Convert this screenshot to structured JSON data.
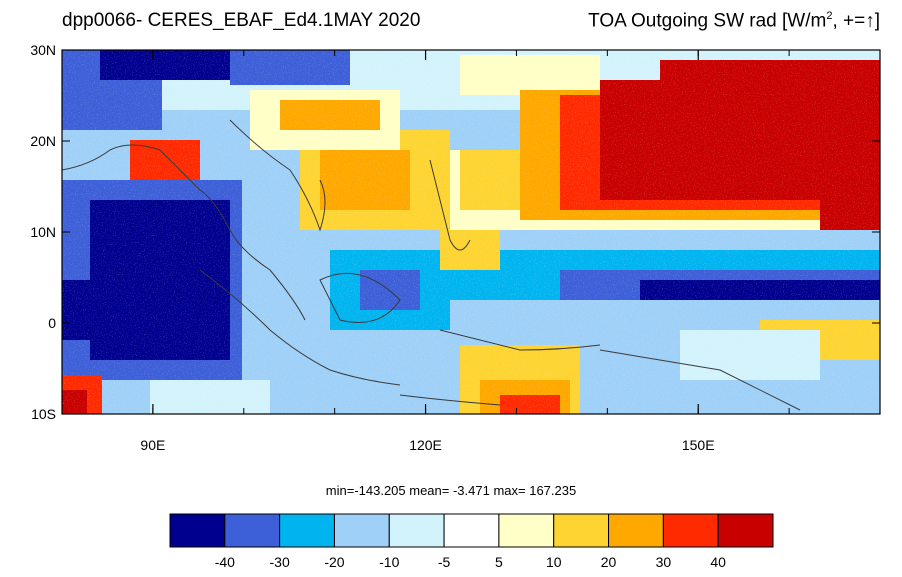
{
  "title_left": "dpp0066- CERES_EBAF_Ed4.1MAY 2020",
  "title_right": {
    "main": "TOA Outgoing SW rad [W/m",
    "sup": "2",
    "tail": ", +=",
    "arrow": "↑",
    "close": "]"
  },
  "map": {
    "lat_ticks": [
      {
        "value": 30,
        "label": "30N"
      },
      {
        "value": 20,
        "label": "20N"
      },
      {
        "value": 10,
        "label": "10N"
      },
      {
        "value": 0,
        "label": "0"
      },
      {
        "value": -10,
        "label": "10S"
      }
    ],
    "lon_ticks": [
      {
        "value": 90,
        "label": "90E"
      },
      {
        "value": 120,
        "label": "120E"
      },
      {
        "value": 150,
        "label": "150E"
      }
    ],
    "lon_range": [
      80,
      170
    ],
    "lat_range": [
      -10,
      30
    ]
  },
  "stats_text": "min=-143.205  mean=  -3.471  max= 167.235",
  "colorbar": {
    "colors": [
      "#00008f",
      "#3d5fd8",
      "#00b4f0",
      "#9fd0f7",
      "#d3f3fc",
      "#ffffff",
      "#ffffc7",
      "#fdd431",
      "#fea800",
      "#ff2a00",
      "#c80000"
    ],
    "labels": [
      "-40",
      "-30",
      "-20",
      "-10",
      "-5",
      "5",
      "10",
      "20",
      "30",
      "40"
    ]
  }
}
